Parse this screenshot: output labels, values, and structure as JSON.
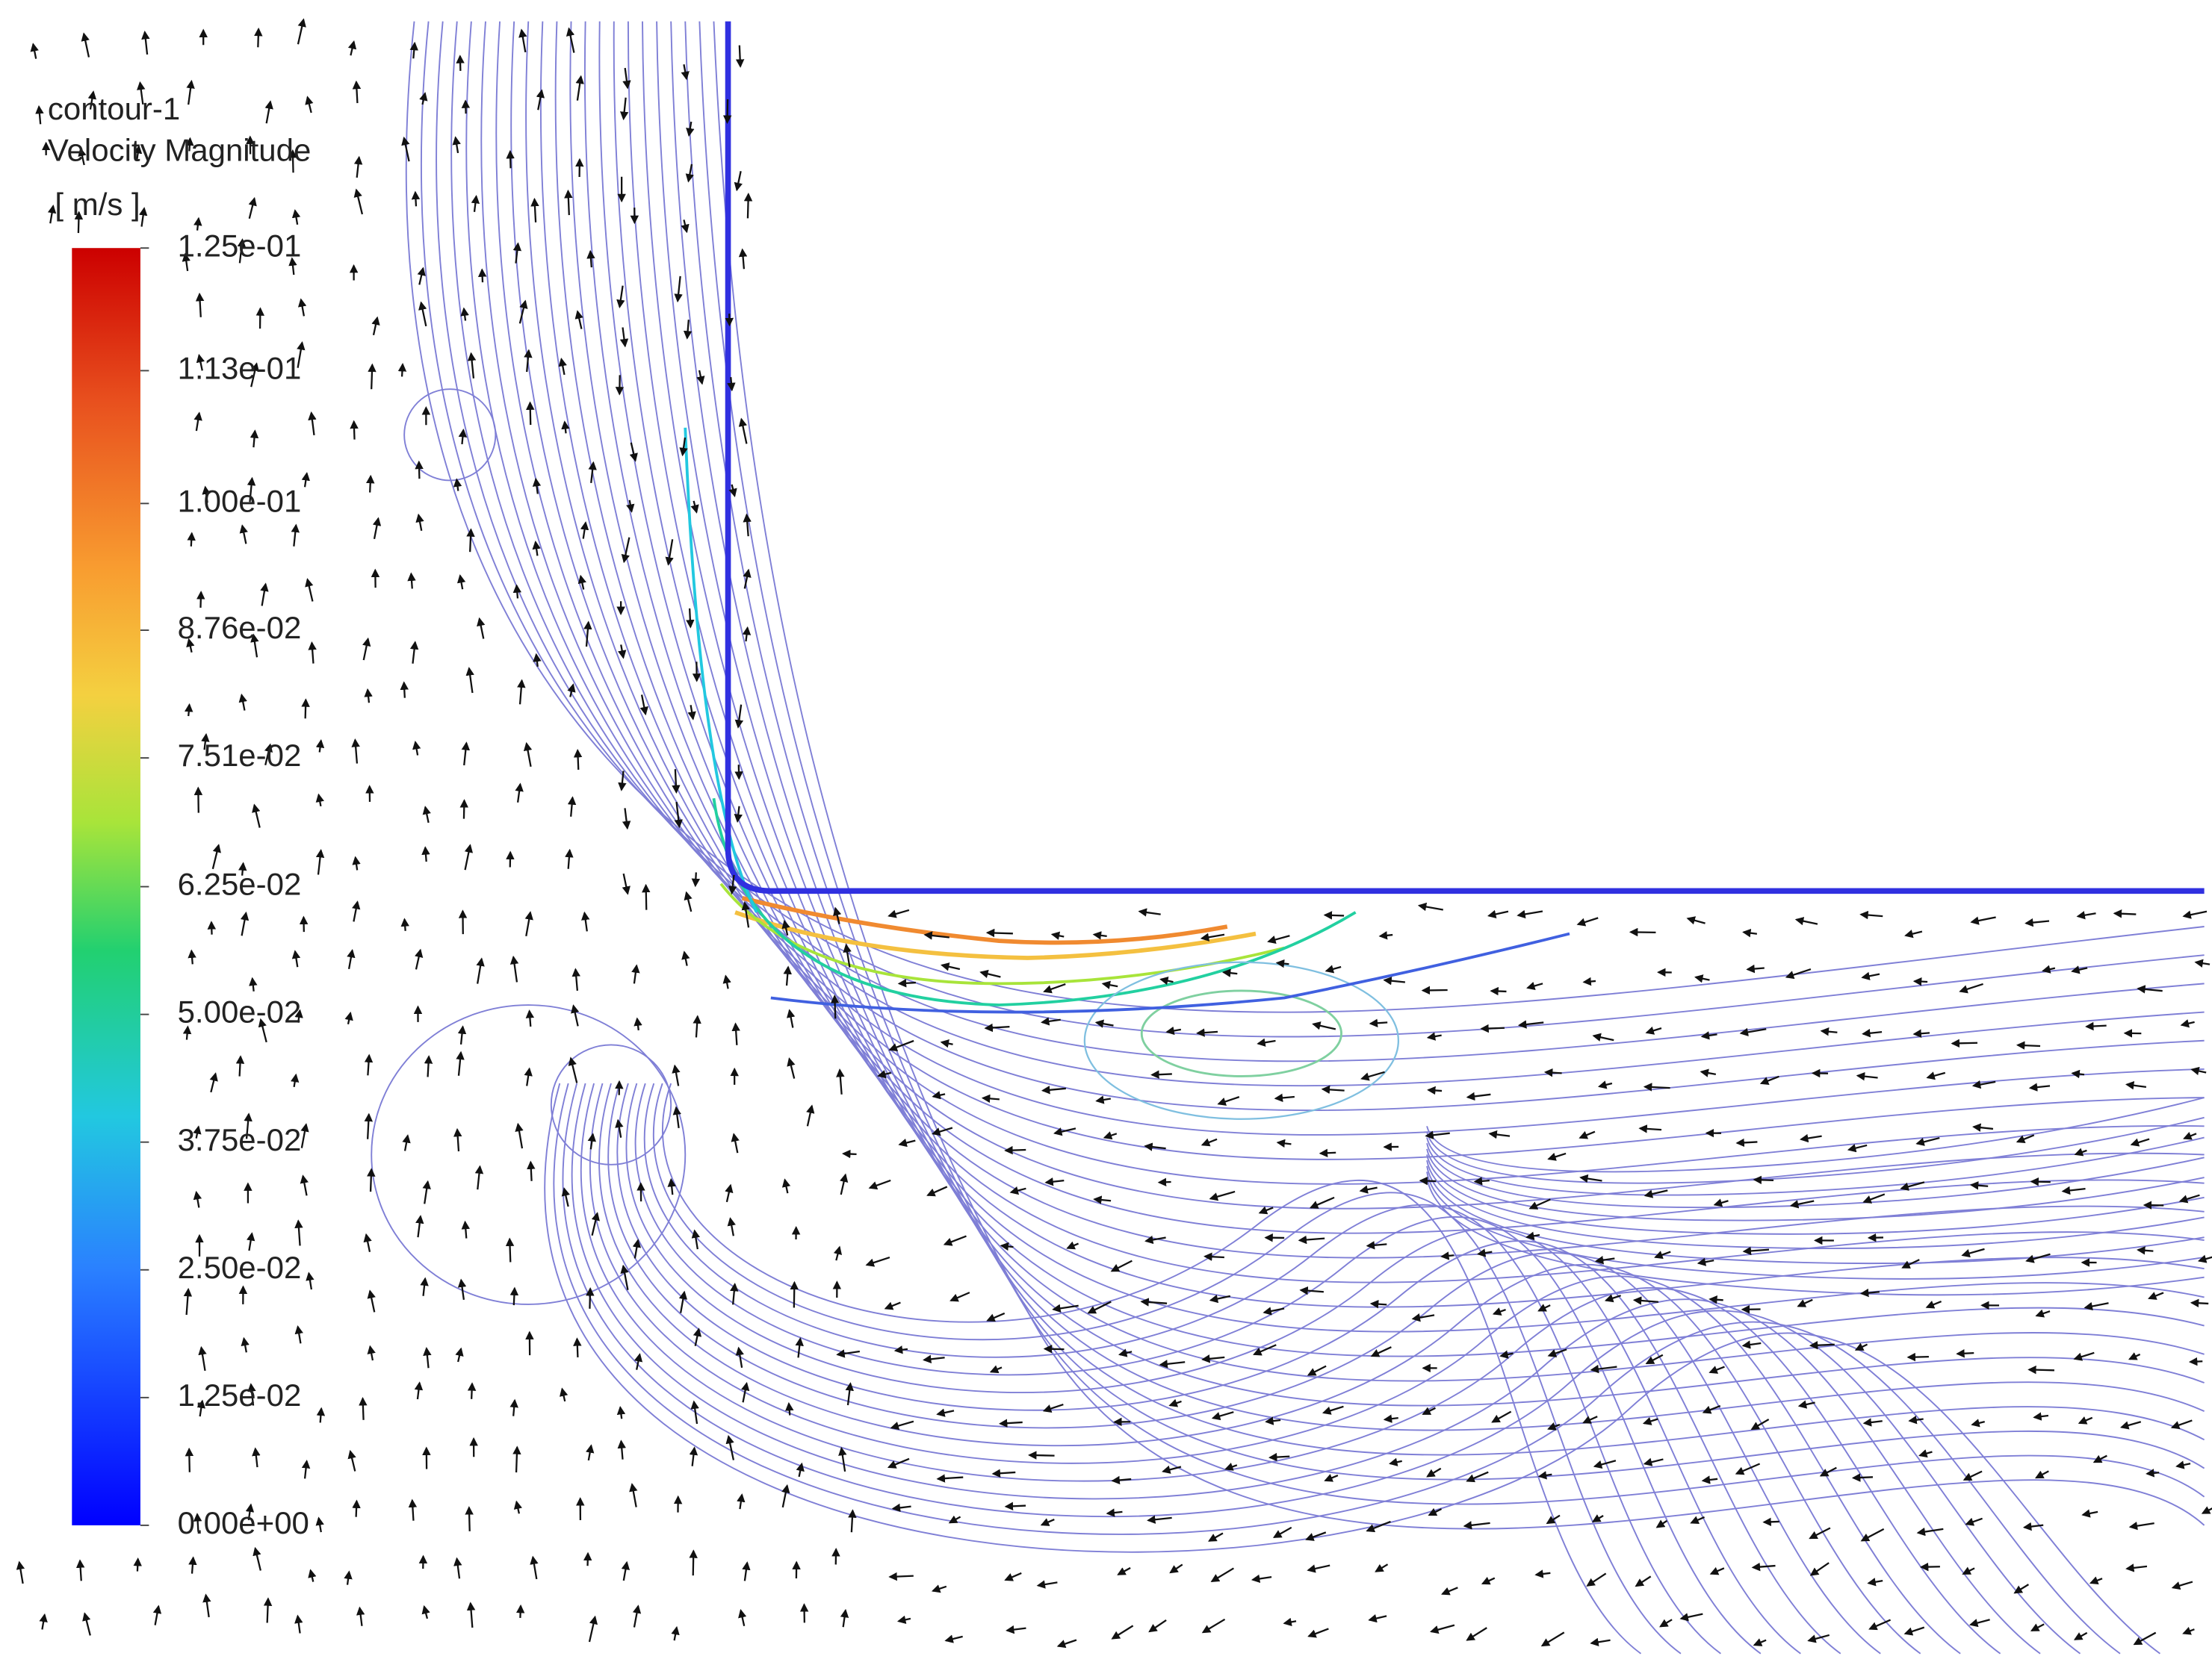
{
  "legend": {
    "title": "contour-1",
    "variable": "Velocity Magnitude",
    "unit": "[ m/s ]",
    "range": [
      0,
      0.125
    ],
    "ticks": [
      {
        "value": 0.125,
        "label": "1.25e-01"
      },
      {
        "value": 0.113,
        "label": "1.13e-01"
      },
      {
        "value": 0.1,
        "label": "1.00e-01"
      },
      {
        "value": 0.0876,
        "label": "8.76e-02"
      },
      {
        "value": 0.0751,
        "label": "7.51e-02"
      },
      {
        "value": 0.0625,
        "label": "6.25e-02"
      },
      {
        "value": 0.05,
        "label": "5.00e-02"
      },
      {
        "value": 0.0375,
        "label": "3.75e-02"
      },
      {
        "value": 0.025,
        "label": "2.50e-02"
      },
      {
        "value": 0.0125,
        "label": "1.25e-02"
      },
      {
        "value": 0,
        "label": "0.00e+00"
      }
    ]
  }
}
